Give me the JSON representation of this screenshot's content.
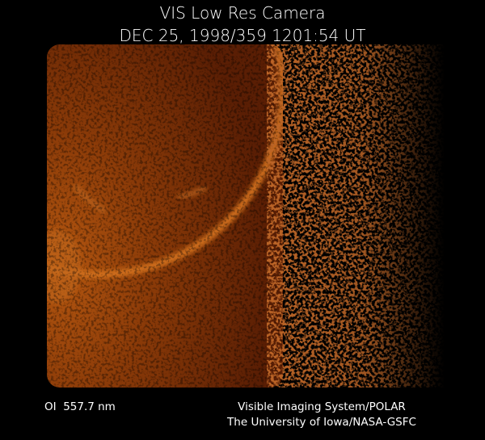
{
  "header": {
    "title": "VIS Low Res Camera",
    "timestamp": "DEC 25, 1998/359 1201:54 UT"
  },
  "footer": {
    "filter": "OI  557.7 nm",
    "credit_line_1": "Visible Imaging System/POLAR",
    "credit_line_2": "The University of Iowa/NASA-GSFC"
  }
}
